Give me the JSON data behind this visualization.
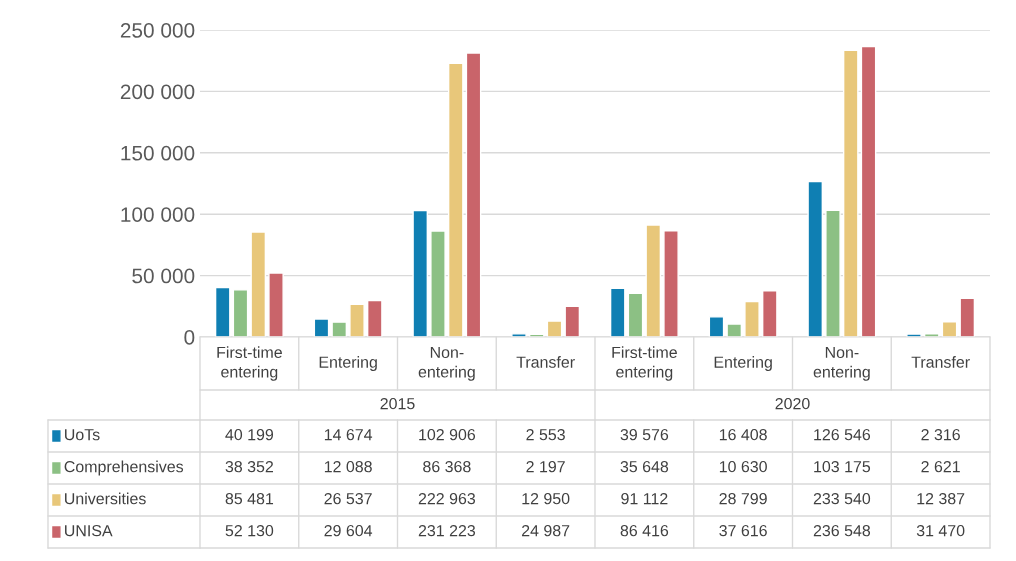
{
  "chart_data": {
    "type": "bar",
    "categories": [
      "First-time entering",
      "Entering",
      "Non-entering",
      "Transfer",
      "First-time entering",
      "Entering",
      "Non-entering",
      "Transfer"
    ],
    "annotations": [
      "2015",
      "2020"
    ],
    "series": [
      {
        "name": "UoTs",
        "color": "#0f7fb3",
        "values": [
          40199,
          14674,
          102906,
          2553,
          39576,
          16408,
          126546,
          2316
        ]
      },
      {
        "name": "Comprehensives",
        "color": "#8cc084",
        "values": [
          38352,
          12088,
          86368,
          2197,
          35648,
          10630,
          103175,
          2621
        ]
      },
      {
        "name": "Universities",
        "color": "#e8c77a",
        "values": [
          85481,
          26537,
          222963,
          12950,
          91112,
          28799,
          233540,
          12387
        ]
      },
      {
        "name": "UNISA",
        "color": "#c9646a",
        "values": [
          52130,
          29604,
          231223,
          24987,
          86416,
          37616,
          236548,
          31470
        ]
      }
    ],
    "ylim": [
      0,
      250000
    ],
    "yticks": [
      {
        "value": 0,
        "label": "0"
      },
      {
        "value": 50000,
        "label": "50 000"
      },
      {
        "value": 100000,
        "label": "100 000"
      },
      {
        "value": 150000,
        "label": "150 000"
      },
      {
        "value": 200000,
        "label": "200 000"
      },
      {
        "value": 250000,
        "label": "250 000"
      }
    ],
    "grid": "y",
    "legend": "bottom",
    "data_labels": true
  }
}
